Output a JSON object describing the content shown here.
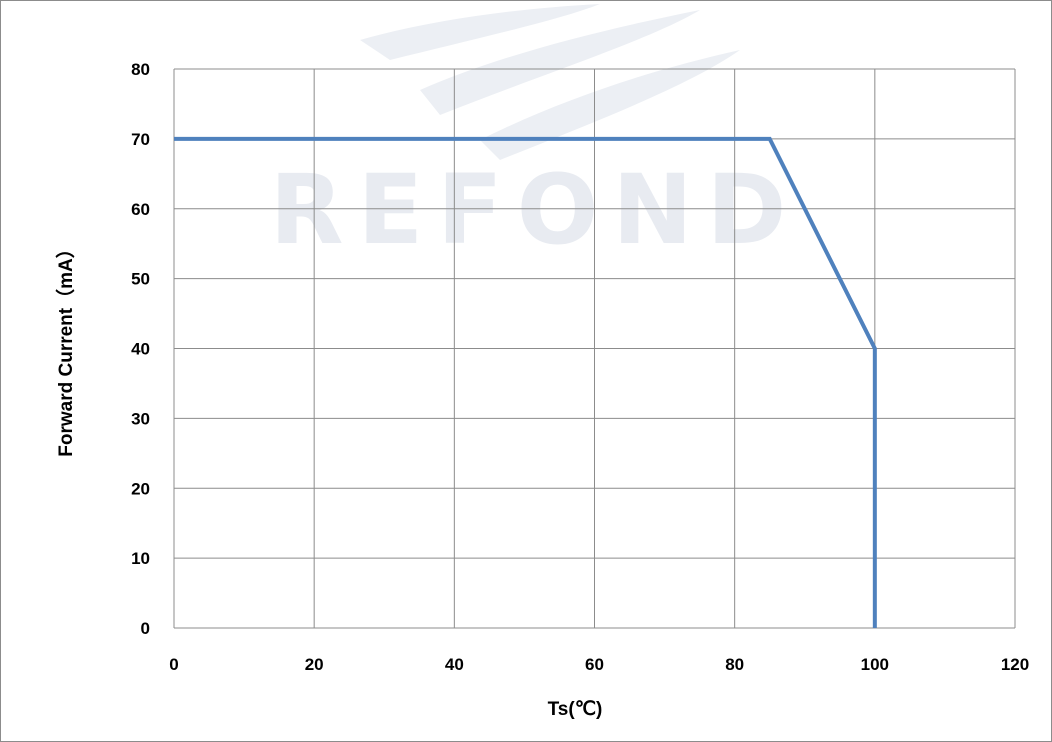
{
  "chart_data": {
    "type": "line",
    "title": "",
    "xlabel": "Ts(℃)",
    "ylabel": "Forward Current（mA）",
    "xlim": [
      0,
      120
    ],
    "ylim": [
      0,
      80
    ],
    "x_ticks": [
      0,
      20,
      40,
      60,
      80,
      100,
      120
    ],
    "y_ticks": [
      0,
      10,
      20,
      30,
      40,
      50,
      60,
      70,
      80
    ],
    "grid": true,
    "legend": "none",
    "series": [
      {
        "color": "#4f81bd",
        "points": [
          [
            0,
            70
          ],
          [
            85,
            70
          ],
          [
            100,
            40
          ],
          [
            100,
            0
          ]
        ]
      }
    ]
  },
  "watermark": {
    "text": "REFOND",
    "color": "#e8ebf1"
  }
}
